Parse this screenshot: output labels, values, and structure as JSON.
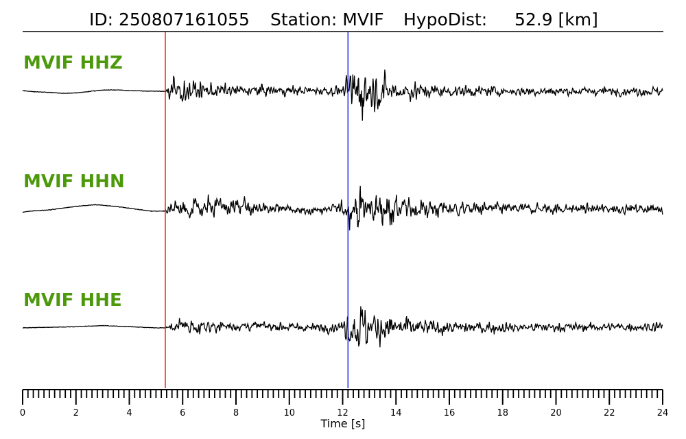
{
  "header": {
    "id_text": "ID: 250807161055",
    "station_text": "Station: MVIF",
    "dist_text": "HypoDist:     52.9 [km]"
  },
  "colors": {
    "label": "#4c9a0c",
    "trace": "#000000",
    "p_pick": "#e8231b",
    "s_pick": "#1f2ee6"
  },
  "chart_data": {
    "type": "line",
    "title": "ID: 250807161055   Station: MVIF   HypoDist:     52.9 [km]",
    "xlabel": "Time [s]",
    "ylabel": "",
    "xlim": [
      0,
      24
    ],
    "major_ticks": [
      0,
      2,
      4,
      6,
      8,
      10,
      12,
      14,
      16,
      18,
      20,
      22,
      24
    ],
    "minor_tick_step": 0.2,
    "grid": false,
    "legend": "none",
    "picks": [
      {
        "phase": "P",
        "time": 5.35,
        "color": "#e8231b"
      },
      {
        "phase": "S",
        "time": 12.2,
        "color": "#1f2ee6"
      }
    ],
    "series": [
      {
        "name": "MVIF HHZ",
        "pre_event": [
          [
            0,
            0.05
          ],
          [
            0.5,
            -0.05
          ],
          [
            1,
            -0.1
          ],
          [
            1.5,
            -0.18
          ],
          [
            2,
            -0.15
          ],
          [
            2.5,
            -0.02
          ],
          [
            3,
            0.1
          ],
          [
            3.5,
            0.12
          ],
          [
            4,
            0.05
          ],
          [
            4.5,
            0.02
          ],
          [
            5,
            0
          ],
          [
            5.35,
            0
          ]
        ],
        "envelope": [
          [
            5.35,
            0.3
          ],
          [
            5.5,
            1.8
          ],
          [
            6,
            1.3
          ],
          [
            7,
            0.8
          ],
          [
            8,
            0.55
          ],
          [
            9,
            0.6
          ],
          [
            10,
            0.5
          ],
          [
            11,
            0.45
          ],
          [
            12,
            0.6
          ],
          [
            12.2,
            1.3
          ],
          [
            12.5,
            3.2
          ],
          [
            13,
            2.2
          ],
          [
            13.5,
            1.6
          ],
          [
            14,
            1.2
          ],
          [
            15,
            0.8
          ],
          [
            16,
            0.6
          ],
          [
            18,
            0.5
          ],
          [
            20,
            0.45
          ],
          [
            22,
            0.45
          ],
          [
            24,
            0.5
          ]
        ],
        "offset": [
          [
            5,
            0
          ],
          [
            6,
            0.05
          ],
          [
            12,
            0.05
          ],
          [
            15,
            0
          ],
          [
            24,
            0
          ]
        ]
      },
      {
        "name": "MVIF HHN",
        "pre_event": [
          [
            0,
            -0.2
          ],
          [
            0.3,
            -0.1
          ],
          [
            1,
            0
          ],
          [
            2,
            0.3
          ],
          [
            2.7,
            0.45
          ],
          [
            3.5,
            0.3
          ],
          [
            4.3,
            0.05
          ],
          [
            4.8,
            -0.1
          ],
          [
            5.35,
            -0.1
          ]
        ],
        "envelope": [
          [
            5.35,
            0.3
          ],
          [
            5.6,
            1.1
          ],
          [
            6.5,
            0.9
          ],
          [
            8,
            0.85
          ],
          [
            9,
            0.7
          ],
          [
            10,
            0.55
          ],
          [
            11,
            0.45
          ],
          [
            12,
            0.7
          ],
          [
            12.2,
            1.4
          ],
          [
            12.5,
            2.6
          ],
          [
            13,
            1.9
          ],
          [
            13.5,
            1.7
          ],
          [
            14,
            1.4
          ],
          [
            15,
            1.0
          ],
          [
            16,
            0.8
          ],
          [
            18,
            0.6
          ],
          [
            20,
            0.55
          ],
          [
            22,
            0.5
          ],
          [
            24,
            0.45
          ]
        ],
        "offset": [
          [
            5,
            0.05
          ],
          [
            8,
            0.25
          ],
          [
            10,
            0.05
          ],
          [
            11,
            -0.05
          ],
          [
            12,
            0.1
          ],
          [
            14,
            0.1
          ],
          [
            24,
            0.1
          ]
        ]
      },
      {
        "name": "MVIF HHE",
        "pre_event": [
          [
            0,
            0
          ],
          [
            1,
            0.05
          ],
          [
            2,
            0.1
          ],
          [
            3,
            0.2
          ],
          [
            4,
            0.1
          ],
          [
            5,
            0
          ],
          [
            5.35,
            0
          ]
        ],
        "envelope": [
          [
            5.35,
            0.2
          ],
          [
            5.6,
            0.6
          ],
          [
            6.5,
            0.7
          ],
          [
            8,
            0.5
          ],
          [
            9,
            0.45
          ],
          [
            10,
            0.4
          ],
          [
            11,
            0.45
          ],
          [
            12,
            0.6
          ],
          [
            12.2,
            1.7
          ],
          [
            12.5,
            2.9
          ],
          [
            13,
            2.0
          ],
          [
            13.5,
            1.6
          ],
          [
            14,
            1.2
          ],
          [
            15,
            0.9
          ],
          [
            16,
            0.7
          ],
          [
            18,
            0.55
          ],
          [
            20,
            0.5
          ],
          [
            22,
            0.45
          ],
          [
            24,
            0.5
          ]
        ],
        "offset": [
          [
            5,
            0
          ],
          [
            6,
            0.15
          ],
          [
            9,
            0.15
          ],
          [
            11,
            0
          ],
          [
            12,
            0.1
          ],
          [
            15,
            0
          ],
          [
            24,
            0.1
          ]
        ]
      }
    ]
  }
}
